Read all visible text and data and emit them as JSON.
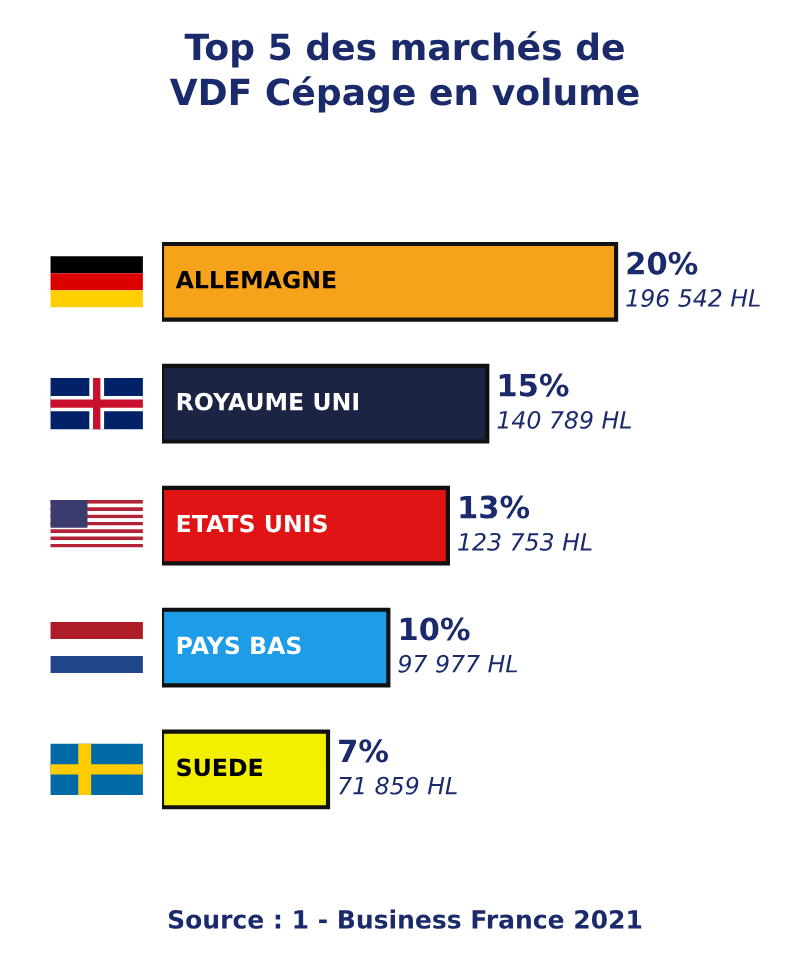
{
  "chart_data": {
    "type": "bar",
    "orientation": "horizontal",
    "title": "Top 5 des marchés de\nVDF Cépage en volume",
    "categories": [
      "ALLEMAGNE",
      "ROYAUME UNI",
      "ETATS UNIS",
      "PAYS BAS",
      "SUEDE"
    ],
    "values": [
      196542,
      140789,
      123753,
      97977,
      71859
    ],
    "colors": [
      "#f7a21b",
      "#1c2444",
      "#e01414",
      "#1e9ce8",
      "#f3ef00"
    ],
    "value_labels": [
      "20%\n196 542 HL",
      "15%\n140 789 HL",
      "13%\n123 753 HL",
      "10%\n97 977 HL",
      "7%\n71 859 HL"
    ],
    "annotations": [
      "Source : 1 - Business France 2021"
    ]
  }
}
